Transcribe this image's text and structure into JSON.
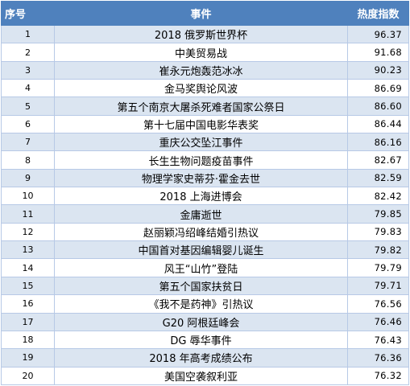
{
  "table": {
    "headers": {
      "rank": "序号",
      "event": "事件",
      "heat": "热度指数"
    },
    "rows": [
      {
        "rank": "1",
        "event": "2018 俄罗斯世界杯",
        "heat": "96.37"
      },
      {
        "rank": "2",
        "event": "中美贸易战",
        "heat": "91.68"
      },
      {
        "rank": "3",
        "event": "崔永元炮轰范冰冰",
        "heat": "90.23"
      },
      {
        "rank": "4",
        "event": "金马奖舆论风波",
        "heat": "86.69"
      },
      {
        "rank": "5",
        "event": "第五个南京大屠杀死难者国家公祭日",
        "heat": "86.60"
      },
      {
        "rank": "6",
        "event": "第十七届中国电影华表奖",
        "heat": "86.44"
      },
      {
        "rank": "7",
        "event": "重庆公交坠江事件",
        "heat": "86.16"
      },
      {
        "rank": "8",
        "event": "长生生物问题疫苗事件",
        "heat": "82.67"
      },
      {
        "rank": "9",
        "event": "物理学家史蒂芬·霍金去世",
        "heat": "82.59"
      },
      {
        "rank": "10",
        "event": "2018 上海进博会",
        "heat": "82.42"
      },
      {
        "rank": "11",
        "event": "金庸逝世",
        "heat": "79.85"
      },
      {
        "rank": "12",
        "event": "赵丽颖冯绍峰结婚引热议",
        "heat": "79.83"
      },
      {
        "rank": "13",
        "event": "中国首对基因编辑婴儿诞生",
        "heat": "79.82"
      },
      {
        "rank": "14",
        "event": "风王“山竹”登陆",
        "heat": "79.79"
      },
      {
        "rank": "15",
        "event": "第五个国家扶贫日",
        "heat": "79.71"
      },
      {
        "rank": "16",
        "event": "《我不是药神》引热议",
        "heat": "76.56"
      },
      {
        "rank": "17",
        "event": "G20 阿根廷峰会",
        "heat": "76.46"
      },
      {
        "rank": "18",
        "event": "DG 辱华事件",
        "heat": "76.43"
      },
      {
        "rank": "19",
        "event": "2018 年高考成绩公布",
        "heat": "76.36"
      },
      {
        "rank": "20",
        "event": "美国空袭叙利亚",
        "heat": "76.32"
      }
    ]
  }
}
